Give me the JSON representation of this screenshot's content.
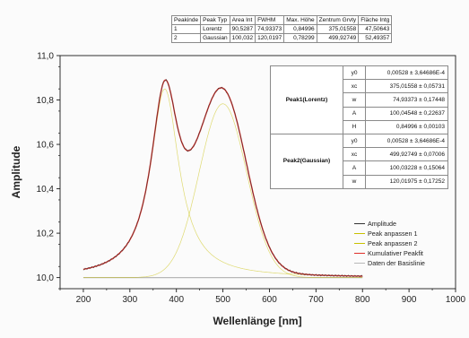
{
  "chart_data": {
    "type": "line",
    "xlabel": "Wellenlänge [nm]",
    "ylabel": "Amplitude",
    "xlim": [
      150,
      1000
    ],
    "ylim": [
      9.95,
      11.0
    ],
    "x_ticks": [
      "200",
      "300",
      "400",
      "500",
      "600",
      "700",
      "800",
      "900",
      "1000"
    ],
    "y_ticks": [
      "10,0",
      "10,2",
      "10,4",
      "10,6",
      "10,8",
      "11,0"
    ],
    "series": [
      {
        "name": "Amplitude",
        "color": "#333333"
      },
      {
        "name": "Peak anpassen 1",
        "color": "#c8c000"
      },
      {
        "name": "Peak anpassen 2",
        "color": "#c8c000"
      },
      {
        "name": "Kumulativer Peakfit",
        "color": "#e0302a"
      },
      {
        "name": "Daten der Basislinie",
        "color": "#b8b8b8"
      }
    ],
    "baseline": 10.0,
    "peaks": [
      {
        "shape": "lorentz",
        "xc": 375.01558,
        "w": 74.93373,
        "A": 100.04548,
        "H": 0.84996
      },
      {
        "shape": "gauss",
        "xc": 499.92749,
        "w": 120.01975,
        "A": 100.03228,
        "H": 0.78299
      }
    ],
    "x_range": [
      200,
      800
    ],
    "legend_position": "bottom-right"
  },
  "peak_table": {
    "headers": [
      "Peakinde",
      "Peak Typ",
      "Area Int",
      "FWHM",
      "Max. Höhe",
      "Zentrum Grvty",
      "Fläche Intg"
    ],
    "rows": [
      [
        "1",
        "Lorentz",
        "90,5287",
        "74,93373",
        "0,84996",
        "375,01558",
        "47,50643"
      ],
      [
        "2",
        "Gaussian",
        "100,032",
        "120,0197",
        "0,78299",
        "499,92749",
        "52,49357"
      ]
    ]
  },
  "param_table": {
    "groups": [
      {
        "label": "Peak1(Lorentz)",
        "params": [
          {
            "name": "y0",
            "value": "0,00528 ± 3,64686E-4"
          },
          {
            "name": "xc",
            "value": "375,01558 ± 0,05731"
          },
          {
            "name": "w",
            "value": "74,93373 ± 0,17448"
          },
          {
            "name": "A",
            "value": "100,04548 ± 0,22637"
          },
          {
            "name": "H",
            "value": "0,84996 ± 0,00103"
          }
        ]
      },
      {
        "label": "Peak2(Gaussian)",
        "params": [
          {
            "name": "y0",
            "value": "0,00528 ± 3,64686E-4"
          },
          {
            "name": "xc",
            "value": "499,92749 ± 0,07006"
          },
          {
            "name": "A",
            "value": "100,03228 ± 0,15064"
          },
          {
            "name": "w",
            "value": "120,01975 ± 0,17252"
          }
        ]
      }
    ]
  },
  "legend": {
    "items": [
      "Amplitude",
      "Peak anpassen 1",
      "Peak anpassen 2",
      "Kumulativer Peakfit",
      "Daten der Basislinie"
    ]
  }
}
